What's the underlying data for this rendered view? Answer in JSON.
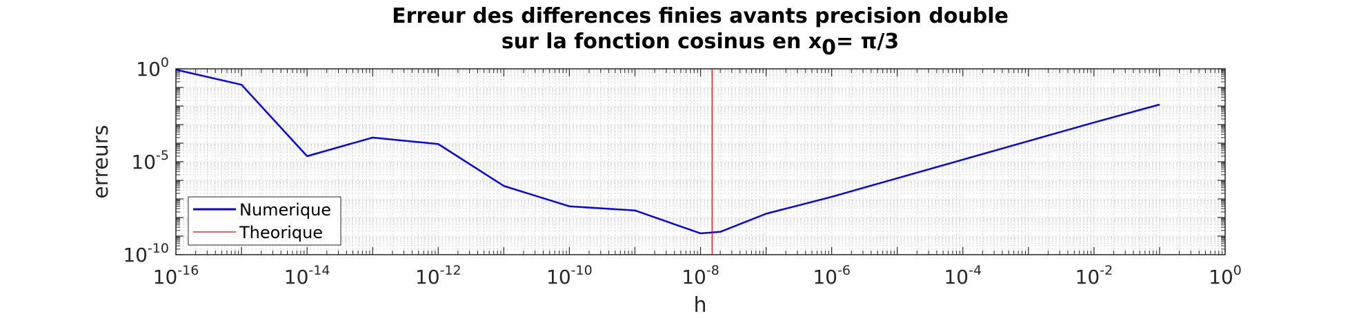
{
  "chart_data": {
    "type": "line",
    "title_line1": "Erreur des differences finies avants precision double",
    "title_line2_prefix": "sur la fonction cosinus en x",
    "title_line2_subscript": "0",
    "title_line2_suffix": "= π/3",
    "xlabel": "h",
    "ylabel": "erreurs",
    "x_scale": "log",
    "y_scale": "log",
    "xlim": [
      1e-16,
      1
    ],
    "ylim": [
      1e-10,
      1
    ],
    "grid": true,
    "minor_grid": true,
    "legend_position": "bottom-left",
    "x_ticks": [
      {
        "value": 1e-16,
        "base": "10",
        "exp": "-16"
      },
      {
        "value": 1e-14,
        "base": "10",
        "exp": "-14"
      },
      {
        "value": 1e-12,
        "base": "10",
        "exp": "-12"
      },
      {
        "value": 1e-10,
        "base": "10",
        "exp": "-10"
      },
      {
        "value": 1e-08,
        "base": "10",
        "exp": "-8"
      },
      {
        "value": 1e-06,
        "base": "10",
        "exp": "-6"
      },
      {
        "value": 0.0001,
        "base": "10",
        "exp": "-4"
      },
      {
        "value": 0.01,
        "base": "10",
        "exp": "-2"
      },
      {
        "value": 1,
        "base": "10",
        "exp": "0"
      }
    ],
    "y_ticks": [
      {
        "value": 1,
        "base": "10",
        "exp": "0"
      },
      {
        "value": 1e-05,
        "base": "10",
        "exp": "-5"
      },
      {
        "value": 1e-10,
        "base": "10",
        "exp": "-10"
      }
    ],
    "series": [
      {
        "name": "Numerique",
        "color": "#0000ff",
        "x": [
          1e-16,
          1e-15,
          1e-14,
          1e-13,
          1e-12,
          1e-11,
          1e-10,
          1e-09,
          1e-08,
          2e-08,
          1e-07,
          1e-06,
          1e-05,
          0.0001,
          0.001,
          0.01,
          0.1
        ],
        "y": [
          0.9,
          0.14,
          2e-05,
          0.0002,
          9e-05,
          5e-07,
          4e-08,
          2.4e-08,
          1.4e-09,
          1.7e-09,
          1.6e-08,
          1.3e-07,
          1.3e-06,
          1.3e-05,
          0.00013,
          0.0013,
          0.012
        ]
      },
      {
        "name": "Theorique",
        "color": "#e8000b",
        "x": [
          1.5e-08,
          1.5e-08
        ],
        "y": [
          1e-10,
          1
        ]
      }
    ]
  }
}
